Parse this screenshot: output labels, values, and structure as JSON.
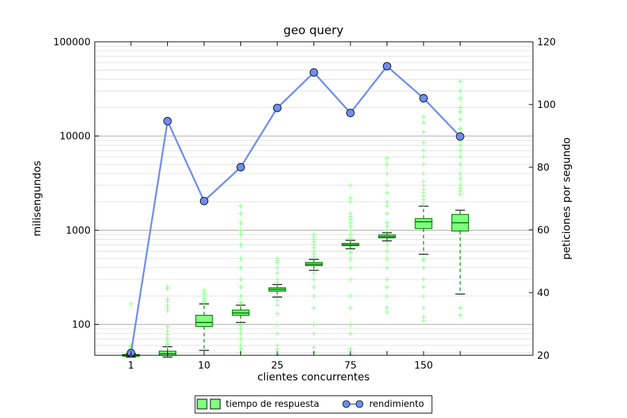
{
  "chart_data": {
    "type": "box+line",
    "title": "geo query",
    "xlabel": "clientes concurrentes",
    "ylabel_left": "milisengundos",
    "ylabel_right": "peticiones por segundo",
    "x_tick_labels": [
      "1",
      "",
      "10",
      "",
      "25",
      "",
      "75",
      "",
      "150",
      ""
    ],
    "y_left": {
      "scale": "log",
      "lim": [
        47,
        100000
      ],
      "ticks": [
        100,
        1000,
        10000,
        100000
      ],
      "tick_labels": [
        "100",
        "1000",
        "10000",
        "100000"
      ]
    },
    "y_right": {
      "scale": "linear",
      "lim": [
        20,
        120
      ],
      "ticks": [
        20,
        40,
        60,
        80,
        100,
        120
      ],
      "tick_labels": [
        "20",
        "40",
        "60",
        "80",
        "100",
        "120"
      ]
    },
    "grid": true,
    "legend_position": "bottom-center",
    "colors": {
      "box_fill": "#80ff80",
      "box_edge": "#007a00",
      "flier": "#80ff80",
      "line": "#6e8ef0",
      "marker_fill": "#6e8ef0",
      "grid": "#b0b0b0"
    },
    "series": [
      {
        "name": "tiempo de respuesta",
        "kind": "box",
        "boxes": [
          {
            "q1": 46,
            "median": 47,
            "q3": 48,
            "whislo": 45,
            "whishi": 49,
            "fliers": [
              50,
              52,
              55,
              58,
              60,
              165
            ]
          },
          {
            "q1": 47,
            "median": 49,
            "q3": 52,
            "whislo": 45,
            "whishi": 58,
            "fliers": [
              60,
              62,
              65,
              68,
              72,
              78,
              85,
              95,
              140,
              150,
              160,
              175,
              185,
              240,
              250
            ]
          },
          {
            "q1": 95,
            "median": 105,
            "q3": 125,
            "whislo": 53,
            "whishi": 165,
            "fliers": [
              170,
              180,
              190,
              200,
              210,
              220,
              230
            ]
          },
          {
            "q1": 125,
            "median": 132,
            "q3": 142,
            "whislo": 105,
            "whishi": 160,
            "fliers": [
              50,
              55,
              60,
              70,
              80,
              90,
              98,
              170,
              200,
              250,
              300,
              400,
              500,
              700,
              900,
              1000,
              1200,
              1500,
              1800
            ]
          },
          {
            "q1": 225,
            "median": 235,
            "q3": 245,
            "whislo": 195,
            "whishi": 265,
            "fliers": [
              48,
              55,
              60,
              80,
              100,
              130,
              160,
              180,
              280,
              300,
              350,
              400,
              450,
              480,
              500
            ]
          },
          {
            "q1": 420,
            "median": 435,
            "q3": 455,
            "whislo": 375,
            "whishi": 490,
            "fliers": [
              50,
              57,
              80,
              100,
              150,
              200,
              250,
              300,
              350,
              520,
              560,
              600,
              650,
              700,
              750,
              800,
              850,
              900
            ]
          },
          {
            "q1": 685,
            "median": 700,
            "q3": 725,
            "whislo": 635,
            "whishi": 780,
            "fliers": [
              48,
              55,
              80,
              100,
              150,
              200,
              300,
              400,
              500,
              580,
              820,
              900,
              1000,
              1100,
              1200,
              1300,
              1400,
              1500,
              2000,
              2200,
              3000
            ]
          },
          {
            "q1": 830,
            "median": 855,
            "q3": 890,
            "whislo": 770,
            "whishi": 940,
            "fliers": [
              135,
              150,
              200,
              250,
              300,
              400,
              500,
              600,
              700,
              1000,
              1100,
              1200,
              1500,
              1800,
              2000,
              2500,
              3000,
              4000,
              5000,
              5800
            ]
          },
          {
            "q1": 1040,
            "median": 1230,
            "q3": 1330,
            "whislo": 555,
            "whishi": 1800,
            "fliers": [
              110,
              120,
              150,
              200,
              250,
              300,
              400,
              480,
              500,
              1900,
              2100,
              2300,
              2500,
              2700,
              3000,
              3300,
              4000,
              5000,
              6000,
              7000,
              8500,
              11000,
              14000,
              16000
            ]
          },
          {
            "q1": 980,
            "median": 1200,
            "q3": 1470,
            "whislo": 210,
            "whishi": 1630,
            "fliers": [
              125,
              150,
              2400,
              2600,
              2800,
              3000,
              3500,
              4000,
              5000,
              6000,
              7000,
              8000,
              9000,
              10000,
              12000,
              15000,
              18000,
              20000,
              25000,
              30000,
              38000
            ]
          }
        ]
      },
      {
        "name": "rendimiento",
        "kind": "line",
        "axis": "right",
        "values": [
          20.7,
          94.7,
          69.2,
          80.0,
          98.9,
          110.2,
          97.3,
          112.2,
          102.0,
          89.8
        ]
      }
    ]
  }
}
